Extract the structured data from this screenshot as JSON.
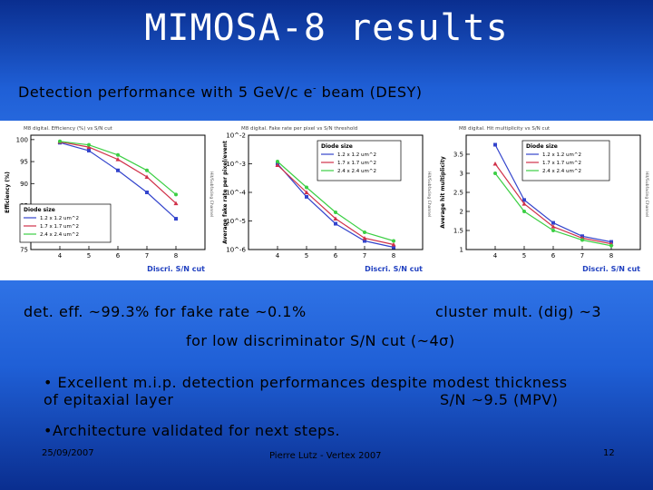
{
  "title": "MIMOSA-8 results",
  "subtitle": {
    "text_before": "Detection performance with 5 GeV/c e",
    "sup": "-",
    "text_after": " beam (DESY)"
  },
  "captions": {
    "left": "det. eff. ~99.3% for fake rate ~0.1%",
    "right": "cluster mult. (dig) ~3",
    "center": "for low discriminator S/N cut (~4σ)"
  },
  "bullets": {
    "b1_line1": "• Excellent m.i.p. detection performances despite modest thickness",
    "b1_line2": "of epitaxial layer",
    "b1_right": "S/N ~9.5 (MPV)",
    "b2": "•Architecture validated for next steps."
  },
  "footer": {
    "date": "25/09/2007",
    "author": "Pierre Lutz - Vertex 2007",
    "page": "12"
  },
  "colors": {
    "series1": "#3344cc",
    "series2": "#d03048",
    "series3": "#3ccf44",
    "axis_label": "#2040c0"
  },
  "chart_data": [
    {
      "type": "line",
      "title": "M8 digital. Efficiency (%) vs S/N cut",
      "xlabel": "Discri. S/N cut",
      "ylabel": "Efficiency (%)",
      "xlim": [
        3,
        9
      ],
      "ylim": [
        75,
        101
      ],
      "yscale": "linear",
      "xticks": [
        4,
        5,
        6,
        7,
        8
      ],
      "yticks": [
        75,
        80,
        85,
        90,
        95,
        100
      ],
      "legend_title": "Diode size",
      "legend_position": "bottom-left",
      "x": [
        4,
        5,
        6,
        7,
        8
      ],
      "series": [
        {
          "name": "1.2 x 1.2 um^2",
          "values": [
            99.3,
            97.5,
            93,
            88,
            82
          ]
        },
        {
          "name": "1.7 x 1.7 um^2",
          "values": [
            99.5,
            98.3,
            95.5,
            91.5,
            85.5
          ]
        },
        {
          "name": "2.4 x 2.4 um^2",
          "values": [
            99.6,
            98.8,
            96.5,
            93,
            87.5
          ]
        }
      ]
    },
    {
      "type": "line",
      "title": "M8 digital. Fake rate per pixel vs S/N threshold",
      "xlabel": "Discri. S/N cut",
      "ylabel": "Average fake rate per pixel/event",
      "xlim": [
        3,
        9
      ],
      "ylim": [
        1e-06,
        0.01
      ],
      "yscale": "log",
      "xticks": [
        4,
        5,
        6,
        7,
        8
      ],
      "yticks": [
        1e-06,
        1e-05,
        0.0001,
        0.001,
        0.01
      ],
      "legend_title": "Diode size",
      "legend_position": "top-right",
      "x": [
        4,
        5,
        6,
        7,
        8
      ],
      "series": [
        {
          "name": "1.2 x 1.2 um^2",
          "values": [
            0.001,
            7e-05,
            8e-06,
            2e-06,
            1.2e-06
          ]
        },
        {
          "name": "1.7 x 1.7 um^2",
          "values": [
            0.0009,
            0.0001,
            1.2e-05,
            2.5e-06,
            1.5e-06
          ]
        },
        {
          "name": "2.4 x 2.4 um^2",
          "values": [
            0.0012,
            0.00015,
            2e-05,
            4e-06,
            2e-06
          ]
        }
      ]
    },
    {
      "type": "line",
      "title": "M8 digital. Hit multiplicity vs S/N cut",
      "xlabel": "Discri. S/N cut",
      "ylabel": "Average hit multiplicity",
      "xlim": [
        3,
        9
      ],
      "ylim": [
        1,
        4
      ],
      "yscale": "linear",
      "xticks": [
        4,
        5,
        6,
        7,
        8
      ],
      "yticks": [
        1,
        1.5,
        2,
        2.5,
        3,
        3.5
      ],
      "legend_title": "Diode size",
      "legend_position": "top-right",
      "x": [
        4,
        5,
        6,
        7,
        8
      ],
      "series": [
        {
          "name": "1.2 x 1.2 um^2",
          "values": [
            3.75,
            2.3,
            1.7,
            1.35,
            1.2
          ]
        },
        {
          "name": "1.7 x 1.7 um^2",
          "values": [
            3.25,
            2.2,
            1.6,
            1.3,
            1.15
          ]
        },
        {
          "name": "2.4 x 2.4 um^2",
          "values": [
            3.0,
            2.0,
            1.5,
            1.25,
            1.1
          ]
        }
      ]
    }
  ]
}
